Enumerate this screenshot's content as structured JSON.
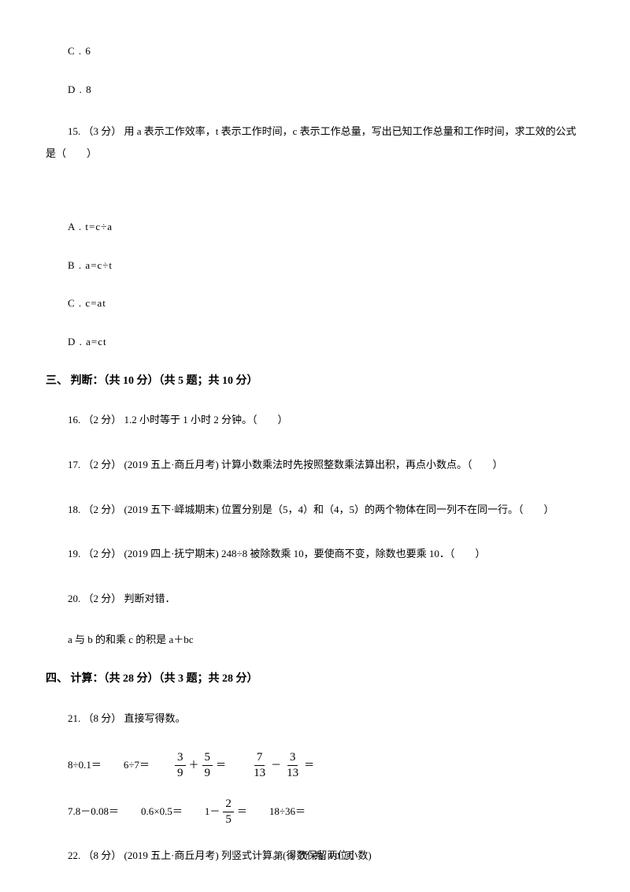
{
  "options_top": {
    "c": "C . 6",
    "d": "D . 8"
  },
  "q15": {
    "text": "15. （3 分） 用 a 表示工作效率，t 表示工作时间，c 表示工作总量，写出已知工作总量和工作时间，求工效的公式是（　　）",
    "opts": {
      "a": "A . t=c÷a",
      "b": "B . a=c÷t",
      "c": "C . c=at",
      "d": "D . a=ct"
    }
  },
  "section3": {
    "heading": "三、 判断：（共 10 分）（共 5 题；共 10 分）",
    "q16": "16. （2 分） 1.2 小时等于 1 小时 2 分钟。（　　）",
    "q17": "17. （2 分） (2019 五上·商丘月考) 计算小数乘法时先按照整数乘法算出积，再点小数点。（　　）",
    "q18": "18. （2 分） (2019 五下·峄城期末) 位置分别是（5，4）和（4，5）的两个物体在同一列不在同一行。（　　）",
    "q19": "19. （2 分） (2019 四上·抚宁期末) 248÷8 被除数乘 10，要使商不变，除数也要乘 10．（　　）",
    "q20": "20. （2 分） 判断对错．",
    "q20_stmt": "a 与 b 的和乘 c 的积是 a＋bc"
  },
  "section4": {
    "heading": "四、 计算：（共 28 分）（共 3 题；共 28 分）",
    "q21": "21. （8 分） 直接写得数。",
    "row1": {
      "item1": "8÷0.1＝",
      "item2": "6÷7＝",
      "f1n": "3",
      "f1d": "9",
      "plus": "＋",
      "f2n": "5",
      "f2d": "9",
      "eq1": "＝",
      "f3n": "7",
      "f3d": "13",
      "minus": "－",
      "f4n": "3",
      "f4d": "13",
      "eq2": "＝"
    },
    "row2": {
      "item1": "7.8－0.08＝",
      "item2": "0.6×0.5＝",
      "oneminus": "1－",
      "f1n": "2",
      "f1d": "5",
      "eq1": "＝",
      "item4": "18÷36＝"
    },
    "q22": "22. （8 分） (2019 五上·商丘月考) 列竖式计算。(得数保留两位小数)"
  },
  "footer": "第 3 页 共 10 页"
}
